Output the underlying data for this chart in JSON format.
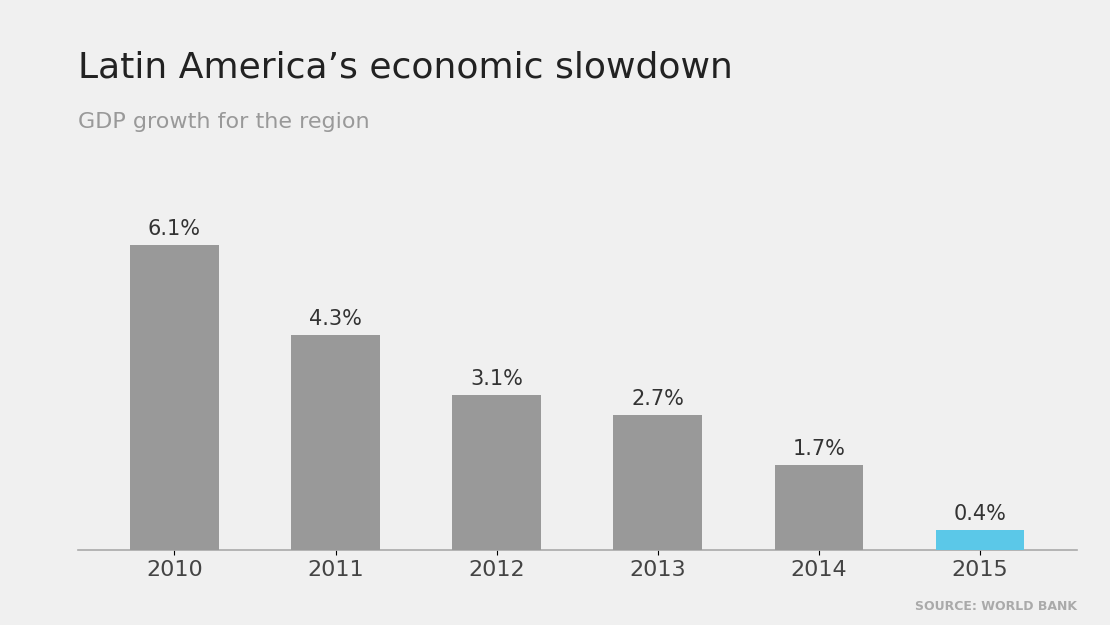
{
  "categories": [
    "2010",
    "2011",
    "2012",
    "2013",
    "2014",
    "2015"
  ],
  "values": [
    6.1,
    4.3,
    3.1,
    2.7,
    1.7,
    0.4
  ],
  "labels": [
    "6.1%",
    "4.3%",
    "3.1%",
    "2.7%",
    "1.7%",
    "0.4%"
  ],
  "bar_colors": [
    "#999999",
    "#999999",
    "#999999",
    "#999999",
    "#999999",
    "#5bc8e8"
  ],
  "title": "Latin America’s economic slowdown",
  "subtitle": "GDP growth for the region",
  "source": "SOURCE: WORLD BANK",
  "background_color": "#f0f0f0",
  "title_fontsize": 26,
  "subtitle_fontsize": 16,
  "label_fontsize": 15,
  "tick_fontsize": 16,
  "source_fontsize": 9,
  "ylim": [
    0,
    7.5
  ]
}
